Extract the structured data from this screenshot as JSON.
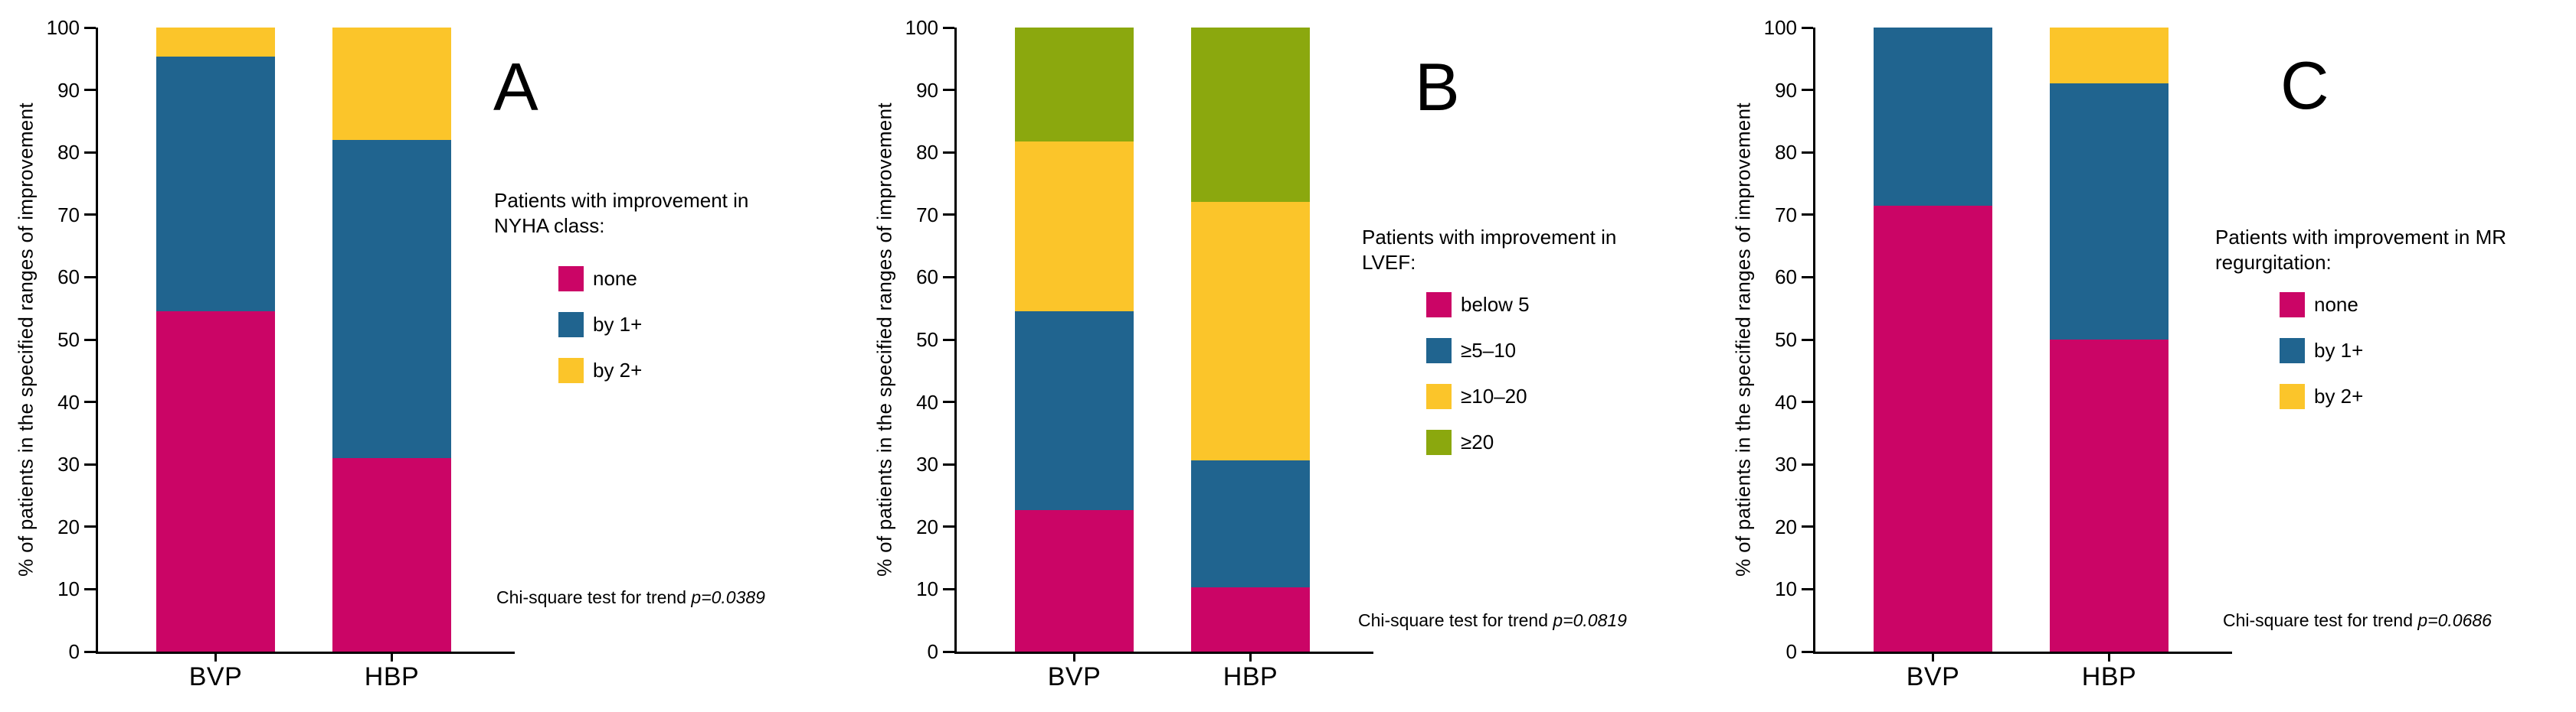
{
  "chart_data": [
    {
      "type": "bar",
      "stacked": true,
      "panel_label": "A",
      "legend_title_lines": [
        "Patients with improvement in",
        "NYHA class:"
      ],
      "categories": [
        "BVP",
        "HBP"
      ],
      "series": [
        {
          "name": "none",
          "color": "#CB0566",
          "values": [
            54.5,
            31.0
          ]
        },
        {
          "name": "by 1+",
          "color": "#20648F",
          "values": [
            40.9,
            51.0
          ]
        },
        {
          "name": "by 2+",
          "color": "#FBC52A",
          "values": [
            4.6,
            18.0
          ]
        }
      ],
      "ylabel": "% of patients in the specified ranges of improvement",
      "ylim": [
        0,
        100
      ],
      "yticks": [
        0,
        10,
        20,
        30,
        40,
        50,
        60,
        70,
        80,
        90,
        100
      ],
      "grid": false,
      "legend_position": "right",
      "annotation": "Chi-square test for trend ",
      "p_value": "p=0.0389"
    },
    {
      "type": "bar",
      "stacked": true,
      "panel_label": "B",
      "legend_title_lines": [
        "Patients with improvement in",
        "LVEF:"
      ],
      "categories": [
        "BVP",
        "HBP"
      ],
      "series": [
        {
          "name": "below 5",
          "color": "#CB0566",
          "values": [
            22.7,
            10.3
          ]
        },
        {
          "name": "≥5–10",
          "color": "#20648F",
          "values": [
            31.8,
            20.3
          ]
        },
        {
          "name": "≥10–20",
          "color": "#FBC52A",
          "values": [
            27.3,
            41.4
          ]
        },
        {
          "name": "≥20",
          "color": "#8BA80E",
          "values": [
            18.2,
            28.0
          ]
        }
      ],
      "ylabel": "% of patients in the specified ranges of improvement",
      "ylim": [
        0,
        100
      ],
      "yticks": [
        0,
        10,
        20,
        30,
        40,
        50,
        60,
        70,
        80,
        90,
        100
      ],
      "grid": false,
      "legend_position": "right",
      "annotation": "Chi-square test for trend ",
      "p_value": "p=0.0819"
    },
    {
      "type": "bar",
      "stacked": true,
      "panel_label": "C",
      "legend_title_lines": [
        "Patients with improvement in MR",
        "regurgitation:"
      ],
      "categories": [
        "BVP",
        "HBP"
      ],
      "series": [
        {
          "name": "none",
          "color": "#CB0566",
          "values": [
            71.4,
            50.0
          ]
        },
        {
          "name": "by 1+",
          "color": "#20648F",
          "values": [
            28.6,
            41.0
          ]
        },
        {
          "name": "by 2+",
          "color": "#FBC52A",
          "values": [
            0,
            9.0
          ]
        }
      ],
      "ylabel": "% of patients in the specified ranges of improvement",
      "ylim": [
        0,
        100
      ],
      "yticks": [
        0,
        10,
        20,
        30,
        40,
        50,
        60,
        70,
        80,
        90,
        100
      ],
      "grid": false,
      "legend_position": "right",
      "annotation": "Chi-square test for trend ",
      "p_value": "p=0.0686"
    }
  ],
  "layout_note_colors": {
    "pink": "#CB0566",
    "blue": "#20648F",
    "yellow": "#FBC52A",
    "green": "#8BA80E"
  }
}
